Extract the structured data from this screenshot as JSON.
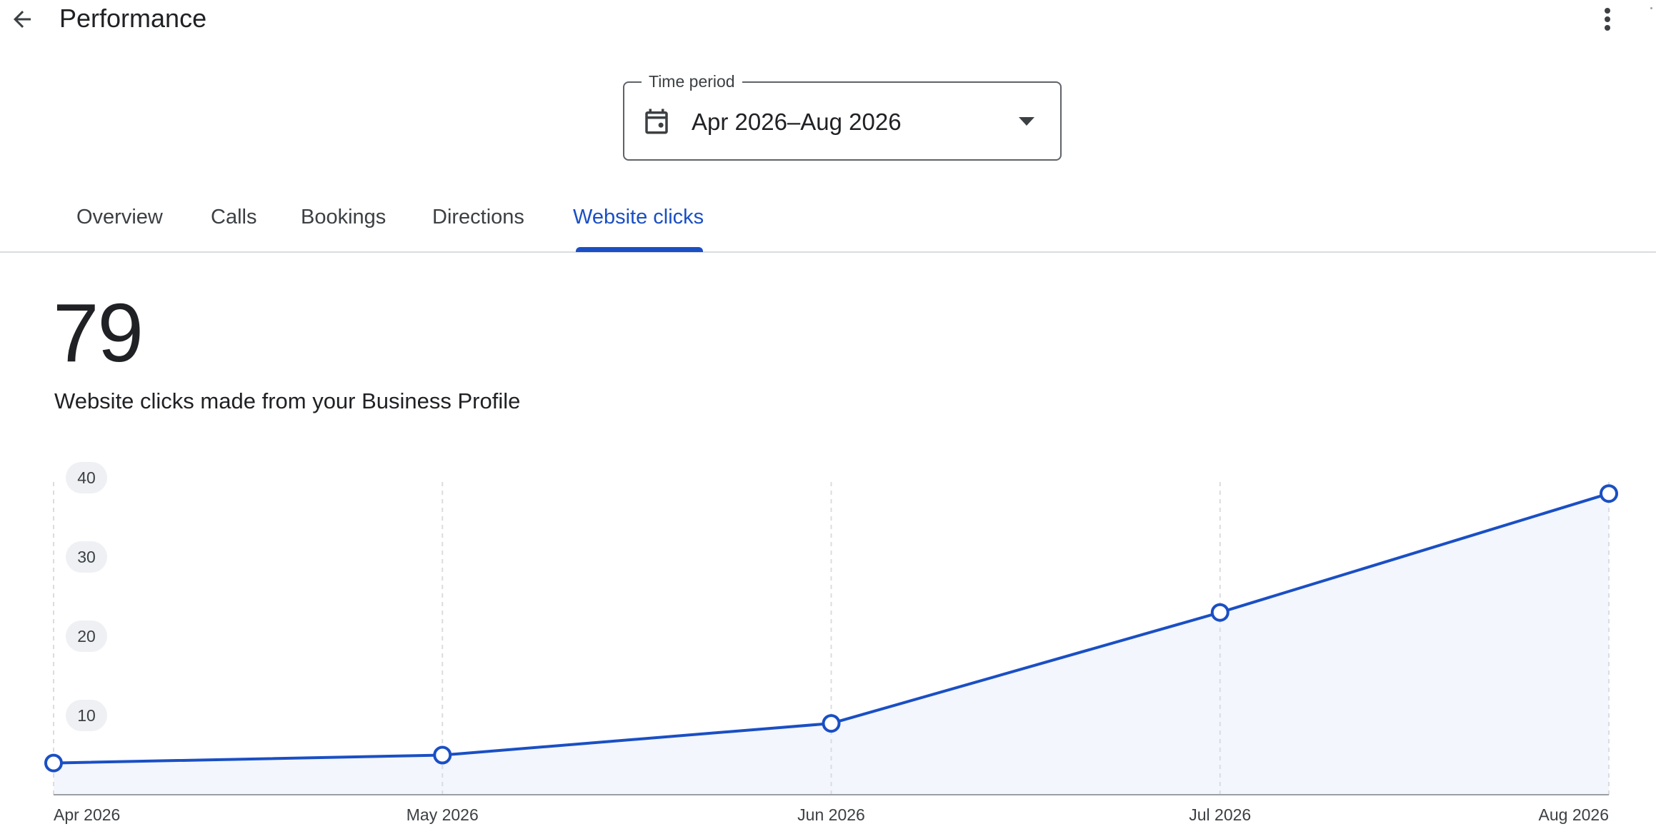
{
  "header": {
    "title": "Performance",
    "back_icon": "arrow-back-icon",
    "more_icon": "more-vert-icon"
  },
  "time_period": {
    "label": "Time period",
    "value": "Apr 2026–Aug 2026",
    "icon": "calendar-icon",
    "caret_icon": "arrow-drop-down-icon"
  },
  "tabs": [
    {
      "label": "Overview",
      "active": false
    },
    {
      "label": "Calls",
      "active": false
    },
    {
      "label": "Bookings",
      "active": false
    },
    {
      "label": "Directions",
      "active": false
    },
    {
      "label": "Website clicks",
      "active": true
    }
  ],
  "metric": {
    "value": "79",
    "description": "Website clicks made from your Business Profile"
  },
  "colors": {
    "accent": "#1a4fc4",
    "area_fill": "#f3f6fd",
    "grid": "#dadce0",
    "axis": "#9aa0a6"
  },
  "chart_data": {
    "type": "line",
    "x": [
      "Apr 2026",
      "May 2026",
      "Jun 2026",
      "Jul 2026",
      "Aug 2026"
    ],
    "series": [
      {
        "values": [
          4,
          5,
          9,
          23,
          38
        ]
      }
    ],
    "y_ticks": [
      10,
      20,
      30,
      40
    ],
    "ylim": [
      0,
      40
    ],
    "area_fill": true,
    "grid": "vertical-dashed"
  }
}
